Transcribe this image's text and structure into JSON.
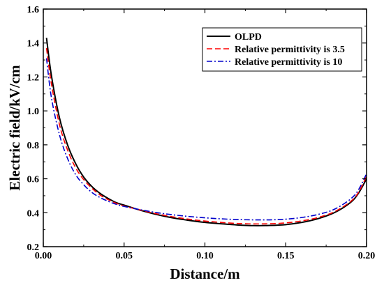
{
  "chart_data": {
    "type": "line",
    "xlabel": "Distance/m",
    "ylabel": "Electric field/kV/cm",
    "xlim": [
      0.0,
      0.2
    ],
    "ylim": [
      0.2,
      1.6
    ],
    "xticks": [
      "0.00",
      "0.05",
      "0.10",
      "0.15",
      "0.20"
    ],
    "yticks": [
      "0.2",
      "0.4",
      "0.6",
      "0.8",
      "1.0",
      "1.2",
      "1.4",
      "1.6"
    ],
    "grid": false,
    "legend_position": "top-right",
    "series": [
      {
        "name": "OLPD",
        "color": "#000000",
        "dash": "solid",
        "x": [
          0.002,
          0.005,
          0.01,
          0.015,
          0.02,
          0.025,
          0.03,
          0.035,
          0.04,
          0.045,
          0.05,
          0.06,
          0.07,
          0.08,
          0.09,
          0.1,
          0.11,
          0.12,
          0.13,
          0.14,
          0.15,
          0.16,
          0.17,
          0.18,
          0.19,
          0.195,
          0.2
        ],
        "y": [
          1.43,
          1.21,
          0.96,
          0.8,
          0.69,
          0.61,
          0.555,
          0.515,
          0.485,
          0.46,
          0.445,
          0.415,
          0.39,
          0.37,
          0.355,
          0.343,
          0.335,
          0.328,
          0.324,
          0.325,
          0.33,
          0.343,
          0.365,
          0.4,
          0.46,
          0.515,
          0.6
        ]
      },
      {
        "name": "Relative permittivity is 3.5",
        "color": "#ff0000",
        "dash": "dash",
        "x": [
          0.002,
          0.005,
          0.01,
          0.015,
          0.02,
          0.025,
          0.03,
          0.035,
          0.04,
          0.045,
          0.05,
          0.06,
          0.07,
          0.08,
          0.09,
          0.1,
          0.11,
          0.12,
          0.13,
          0.14,
          0.15,
          0.16,
          0.17,
          0.18,
          0.19,
          0.195,
          0.2
        ],
        "y": [
          1.37,
          1.16,
          0.92,
          0.77,
          0.665,
          0.595,
          0.545,
          0.505,
          0.478,
          0.456,
          0.44,
          0.416,
          0.394,
          0.376,
          0.362,
          0.351,
          0.343,
          0.337,
          0.334,
          0.335,
          0.34,
          0.352,
          0.372,
          0.405,
          0.465,
          0.52,
          0.615
        ]
      },
      {
        "name": "Relative permittivity is 10",
        "color": "#0000cc",
        "dash": "dashdot",
        "x": [
          0.002,
          0.005,
          0.01,
          0.015,
          0.02,
          0.025,
          0.03,
          0.035,
          0.04,
          0.045,
          0.05,
          0.06,
          0.07,
          0.08,
          0.09,
          0.1,
          0.11,
          0.12,
          0.13,
          0.14,
          0.15,
          0.16,
          0.17,
          0.18,
          0.19,
          0.195,
          0.2
        ],
        "y": [
          1.31,
          1.08,
          0.86,
          0.72,
          0.625,
          0.565,
          0.52,
          0.49,
          0.468,
          0.45,
          0.437,
          0.418,
          0.401,
          0.388,
          0.378,
          0.37,
          0.364,
          0.36,
          0.358,
          0.358,
          0.362,
          0.372,
          0.39,
          0.42,
          0.48,
          0.535,
          0.63
        ]
      }
    ]
  }
}
